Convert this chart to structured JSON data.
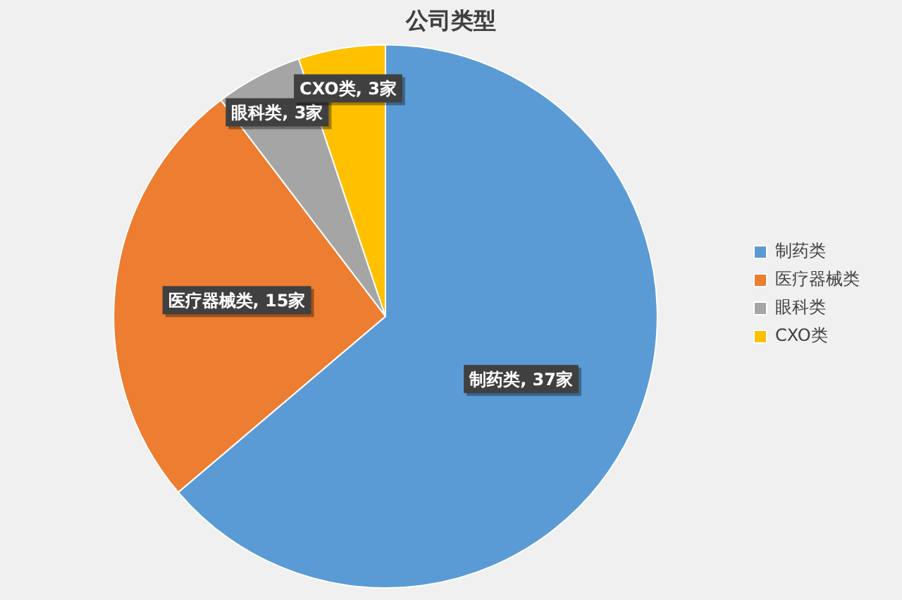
{
  "chart_data": {
    "type": "pie",
    "title": "公司类型",
    "categories": [
      "制药类",
      "医疗器械类",
      "眼科类",
      "CXO类"
    ],
    "values": [
      37,
      15,
      3,
      3
    ],
    "colors": [
      "#5b9bd5",
      "#ed7d31",
      "#a5a5a5",
      "#ffc000"
    ],
    "value_labels": [
      "制药类, 37家",
      "医疗器械类, 15家",
      "眼科类, 3家",
      "CXO类, 3家"
    ],
    "legend": "right"
  }
}
